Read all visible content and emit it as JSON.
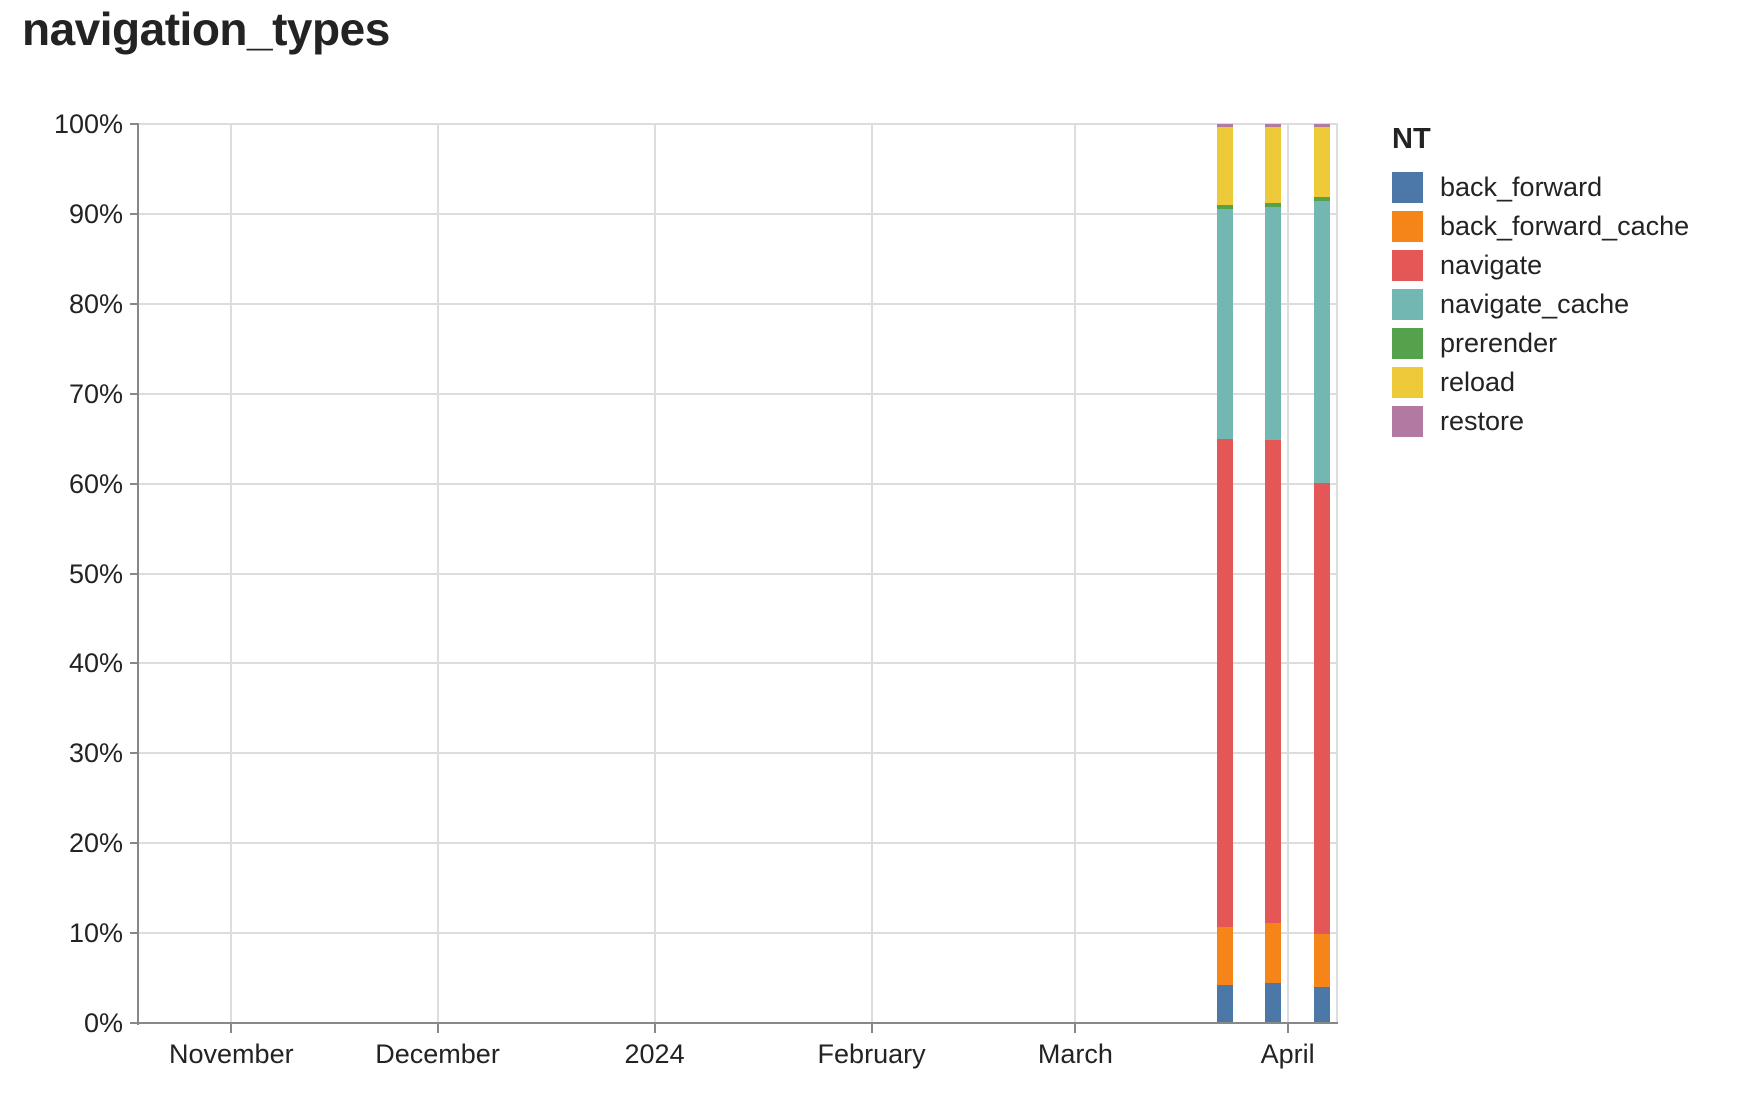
{
  "title": "navigation_types",
  "legend": {
    "title": "NT"
  },
  "colors": {
    "grid": "#dddddd",
    "axis_domain": "#888888",
    "text": "#232323",
    "background": "#ffffff"
  },
  "chart_data": {
    "type": "bar",
    "variant": "stacked-normalized-vertical",
    "title": "navigation_types",
    "legend_title": "NT",
    "legend_position": "right",
    "grid": true,
    "series_order": [
      "back_forward",
      "back_forward_cache",
      "navigate",
      "navigate_cache",
      "prerender",
      "reload",
      "restore"
    ],
    "series_colors": {
      "back_forward": "#4c78a8",
      "back_forward_cache": "#f58518",
      "navigate": "#e45756",
      "navigate_cache": "#72b7b2",
      "prerender": "#54a24b",
      "reload": "#eeca3b",
      "restore": "#b279a2"
    },
    "y_axis": {
      "min": 0,
      "max": 100,
      "step": 10,
      "unit": "%",
      "labels": [
        "0%",
        "10%",
        "20%",
        "30%",
        "40%",
        "50%",
        "60%",
        "70%",
        "80%",
        "90%",
        "100%"
      ]
    },
    "x_axis": {
      "type": "temporal",
      "ticks": [
        {
          "label": "November",
          "pct": 7.7
        },
        {
          "label": "December",
          "pct": 24.9
        },
        {
          "label": "2024",
          "pct": 43.0
        },
        {
          "label": "February",
          "pct": 61.1
        },
        {
          "label": "March",
          "pct": 78.1
        },
        {
          "label": "April",
          "pct": 95.8
        }
      ],
      "right_edge_gridline_pct": 100
    },
    "bars": [
      {
        "x_approx": "2024-03-23",
        "x_pct": 90.6,
        "segments": {
          "back_forward": 4.2,
          "back_forward_cache": 6.5,
          "navigate": 54.3,
          "navigate_cache": 25.6,
          "prerender": 0.4,
          "reload": 8.7,
          "restore": 0.3
        }
      },
      {
        "x_approx": "2024-03-30",
        "x_pct": 94.6,
        "segments": {
          "back_forward": 4.4,
          "back_forward_cache": 6.7,
          "navigate": 53.7,
          "navigate_cache": 26.0,
          "prerender": 0.4,
          "reload": 8.5,
          "restore": 0.3
        }
      },
      {
        "x_approx": "2024-04-06",
        "x_pct": 98.7,
        "segments": {
          "back_forward": 4.0,
          "back_forward_cache": 5.9,
          "navigate": 50.2,
          "navigate_cache": 31.3,
          "prerender": 0.5,
          "reload": 7.8,
          "restore": 0.3
        }
      }
    ]
  }
}
